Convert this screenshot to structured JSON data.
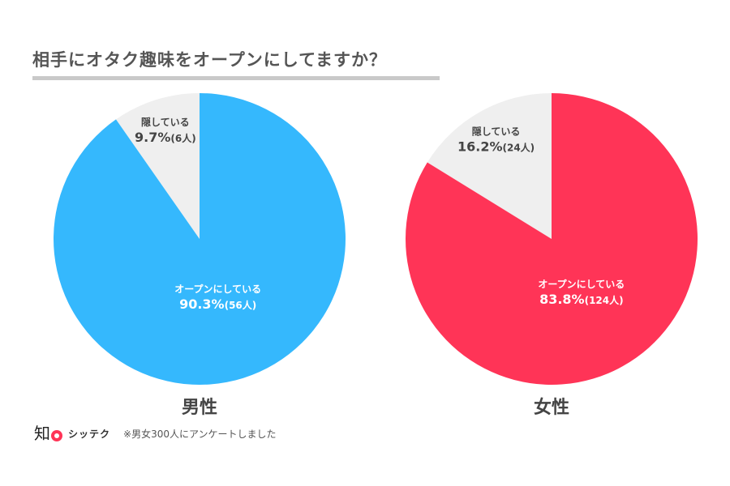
{
  "title": "相手にオタク趣味をオープンにしてますか？",
  "brand": {
    "logo_glyph": "知",
    "name": "シッテク"
  },
  "note": "※男女300人にアンケートしました",
  "colors": {
    "open_male": "#35b8fd",
    "open_female": "#ff3457",
    "hidden": "#efefef"
  },
  "chart_data": [
    {
      "type": "pie",
      "title": "男性",
      "slices": [
        {
          "label": "隠している",
          "value": 9.7,
          "pct_label": "9.7%",
          "count_label": "(6人)",
          "color": "#efefef",
          "text_color": "#444444"
        },
        {
          "label": "オープンにしている",
          "value": 90.3,
          "pct_label": "90.3%",
          "count_label": "(56人)",
          "color": "#35b8fd",
          "text_color": "#ffffff"
        }
      ]
    },
    {
      "type": "pie",
      "title": "女性",
      "slices": [
        {
          "label": "隠している",
          "value": 16.2,
          "pct_label": "16.2%",
          "count_label": "(24人)",
          "color": "#efefef",
          "text_color": "#444444"
        },
        {
          "label": "オープンにしている",
          "value": 83.8,
          "pct_label": "83.8%",
          "count_label": "(124人)",
          "color": "#ff3457",
          "text_color": "#ffffff"
        }
      ]
    }
  ]
}
